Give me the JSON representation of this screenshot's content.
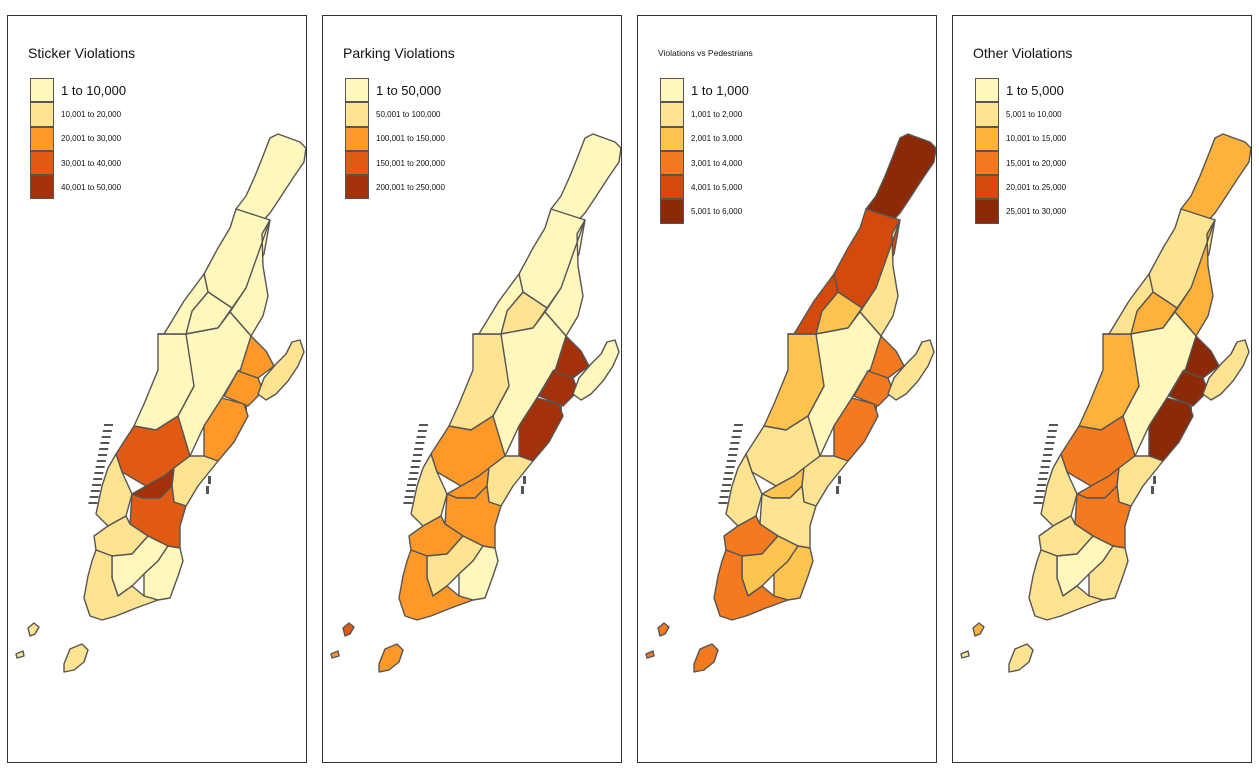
{
  "colors": {
    "c1": "#FFF7BC",
    "c2": "#FEE391",
    "c3": "#FEC44F",
    "c4": "#FE9929",
    "c5": "#EC7014",
    "c6": "#CC4C02",
    "c7": "#993404",
    "outline": "#555555"
  },
  "panels": [
    {
      "title": "Sticker Violations",
      "legend": [
        {
          "label": "1 to 10,000",
          "color": "#FFF7BC"
        },
        {
          "label": "10,001 to 20,000",
          "color": "#FEE391"
        },
        {
          "label": "20,001 to 30,000",
          "color": "#FE9929"
        },
        {
          "label": "30,001 to 40,000",
          "color": "#E05A14"
        },
        {
          "label": "40,001 to 50,000",
          "color": "#A3310A"
        }
      ],
      "regions": {
        "north": "#FFF7BC",
        "upper_west": "#FFF7BC",
        "upper_east": "#FFF7BC",
        "mid_west": "#FFF7BC",
        "mid_center": "#FFF7BC",
        "mid_east": "#FE9929",
        "midtown_w": "#E05A14",
        "midtown_c": "#A3310A",
        "midtown_e": "#FEE391",
        "chelsea": "#FEE391",
        "gramercy": "#E05A14",
        "village": "#FEE391",
        "lower_w": "#FFF7BC",
        "lower_e": "#FFF7BC",
        "fidi": "#FEE391",
        "governors": "#FEE391",
        "islet1": "#FEE391",
        "islet2": "#FEE391",
        "roosevelt": "#FEE391"
      }
    },
    {
      "title": "Parking Violations",
      "legend": [
        {
          "label": "1 to 50,000",
          "color": "#FFF7BC"
        },
        {
          "label": "50,001 to 100,000",
          "color": "#FEE391"
        },
        {
          "label": "100,001 to 150,000",
          "color": "#FE9929"
        },
        {
          "label": "150,001 to 200,000",
          "color": "#E05A14"
        },
        {
          "label": "200,001 to 250,000",
          "color": "#A3310A"
        }
      ],
      "regions": {
        "north": "#FFF7BC",
        "upper_west": "#FFF7BC",
        "upper_east": "#FFF7BC",
        "mid_west": "#FEE391",
        "mid_center": "#FFF7BC",
        "mid_east": "#A3310A",
        "midtown_w": "#FE9929",
        "midtown_c": "#FE9929",
        "midtown_e": "#FEE391",
        "chelsea": "#FEE391",
        "gramercy": "#FE9929",
        "village": "#FE9929",
        "lower_w": "#FEE391",
        "lower_e": "#FFF7BC",
        "fidi": "#FE9929",
        "governors": "#FE9929",
        "islet1": "#E05A14",
        "islet2": "#FE9929",
        "roosevelt": "#FFF7BC"
      }
    },
    {
      "title": "Violations vs Pedestrians",
      "legend": [
        {
          "label": "1 to 1,000",
          "color": "#FFF7BC"
        },
        {
          "label": "1,001 to 2,000",
          "color": "#FEE391"
        },
        {
          "label": "2,001 to 3,000",
          "color": "#FEC44F"
        },
        {
          "label": "3,001 to 4,000",
          "color": "#F37A1F"
        },
        {
          "label": "4,001 to 5,000",
          "color": "#D4490C"
        },
        {
          "label": "5,001 to 6,000",
          "color": "#8C2A07"
        }
      ],
      "regions": {
        "north": "#8C2A07",
        "upper_west": "#D4490C",
        "upper_east": "#FEE391",
        "mid_west": "#FEC44F",
        "mid_center": "#FFF7BC",
        "mid_east": "#F37A1F",
        "midtown_w": "#FEE391",
        "midtown_c": "#FEC44F",
        "midtown_e": "#FEE391",
        "chelsea": "#FEE391",
        "gramercy": "#FEE391",
        "village": "#F37A1F",
        "lower_w": "#FEC44F",
        "lower_e": "#FEC44F",
        "fidi": "#F37A1F",
        "governors": "#F37A1F",
        "islet1": "#F37A1F",
        "islet2": "#F37A1F",
        "roosevelt": "#FEE391"
      }
    },
    {
      "title": "Other Violations",
      "legend": [
        {
          "label": "1 to 5,000",
          "color": "#FFF7BC"
        },
        {
          "label": "5,001 to 10,000",
          "color": "#FEE391"
        },
        {
          "label": "10,001 to 15,000",
          "color": "#FEB23C"
        },
        {
          "label": "15,001 to 20,000",
          "color": "#F37A1F"
        },
        {
          "label": "20,001 to 25,000",
          "color": "#D4490C"
        },
        {
          "label": "25,001 to 30,000",
          "color": "#8C2A07"
        }
      ],
      "regions": {
        "north": "#FEB23C",
        "upper_west": "#FEE391",
        "upper_east": "#FEB23C",
        "mid_west": "#FEB23C",
        "mid_center": "#FFF7BC",
        "mid_east": "#8C2A07",
        "midtown_w": "#F37A1F",
        "midtown_c": "#F37A1F",
        "midtown_e": "#FEE391",
        "chelsea": "#FEE391",
        "gramercy": "#F37A1F",
        "village": "#FEE391",
        "lower_w": "#FFF7BC",
        "lower_e": "#FEE391",
        "fidi": "#FEE391",
        "governors": "#FEE391",
        "islet1": "#FEB23C",
        "islet2": "#FEE391",
        "roosevelt": "#FEE391"
      }
    }
  ]
}
